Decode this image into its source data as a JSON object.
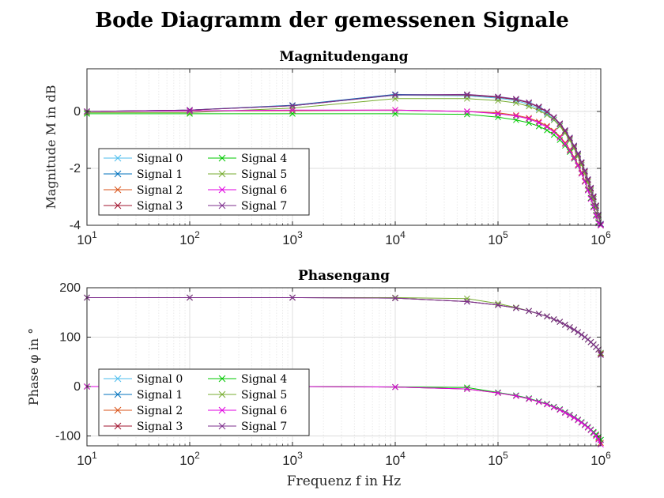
{
  "figure": {
    "title": "Bode Diagramm der gemessenen Signale"
  },
  "chart_data": [
    {
      "type": "line",
      "title": "Magnitudengang",
      "ylabel": "Magnitude M in dB",
      "xlabel": "",
      "xscale": "log",
      "xlim": [
        10,
        1000000
      ],
      "ylim": [
        -4,
        1.5
      ],
      "yticks": [
        -4,
        -2,
        0
      ],
      "ytick_labels": [
        "-4",
        "-2",
        "0"
      ],
      "xtick_labels": [
        "10",
        "10",
        "10",
        "10",
        "10",
        "10"
      ],
      "xtick_exponents": [
        "1",
        "2",
        "3",
        "4",
        "5",
        "6"
      ],
      "grid": true,
      "legend_position": "bottom-left",
      "x": [
        10,
        100,
        1000,
        10000,
        50000,
        100000,
        150000,
        200000,
        250000,
        300000,
        350000,
        400000,
        450000,
        500000,
        550000,
        600000,
        650000,
        700000,
        750000,
        800000,
        850000,
        900000,
        950000,
        1000000
      ],
      "series": [
        {
          "name": "Signal 0",
          "color": "#4DBEEE",
          "values": [
            0.0,
            0.05,
            0.2,
            0.57,
            0.55,
            0.47,
            0.38,
            0.25,
            0.1,
            -0.08,
            -0.28,
            -0.5,
            -0.74,
            -1.0,
            -1.28,
            -1.57,
            -1.87,
            -2.17,
            -2.47,
            -2.77,
            -3.07,
            -3.37,
            -3.67,
            -3.98
          ]
        },
        {
          "name": "Signal 1",
          "color": "#0072BD",
          "values": [
            0.0,
            0.05,
            0.22,
            0.6,
            0.58,
            0.5,
            0.42,
            0.3,
            0.15,
            -0.02,
            -0.22,
            -0.44,
            -0.68,
            -0.94,
            -1.22,
            -1.5,
            -1.8,
            -2.1,
            -2.4,
            -2.7,
            -3.0,
            -3.32,
            -3.64,
            -3.95
          ]
        },
        {
          "name": "Signal 2",
          "color": "#D95319",
          "values": [
            0.0,
            0.02,
            0.03,
            0.05,
            0.0,
            -0.05,
            -0.13,
            -0.23,
            -0.36,
            -0.51,
            -0.68,
            -0.88,
            -1.1,
            -1.34,
            -1.6,
            -1.87,
            -2.15,
            -2.44,
            -2.74,
            -3.04,
            -3.34,
            -3.64,
            -3.9,
            -4.0
          ]
        },
        {
          "name": "Signal 3",
          "color": "#A2142F",
          "values": [
            0.0,
            0.05,
            0.2,
            0.58,
            0.58,
            0.5,
            0.42,
            0.3,
            0.15,
            -0.02,
            -0.22,
            -0.45,
            -0.7,
            -0.96,
            -1.24,
            -1.53,
            -1.82,
            -2.12,
            -2.42,
            -2.72,
            -3.02,
            -3.33,
            -3.65,
            -3.97
          ]
        },
        {
          "name": "Signal 4",
          "color": "#00C800",
          "values": [
            -0.08,
            -0.08,
            -0.08,
            -0.08,
            -0.1,
            -0.2,
            -0.3,
            -0.4,
            -0.52,
            -0.66,
            -0.82,
            -1.0,
            -1.2,
            -1.42,
            -1.66,
            -1.91,
            -2.18,
            -2.46,
            -2.75,
            -3.04,
            -3.34,
            -3.64,
            -3.9,
            -4.0
          ]
        },
        {
          "name": "Signal 5",
          "color": "#77AC30",
          "values": [
            -0.04,
            -0.04,
            0.12,
            0.45,
            0.45,
            0.38,
            0.3,
            0.18,
            0.04,
            -0.12,
            -0.3,
            -0.52,
            -0.76,
            -1.02,
            -1.3,
            -1.58,
            -1.88,
            -2.18,
            -2.48,
            -2.78,
            -3.08,
            -3.4,
            -3.7,
            -4.0
          ]
        },
        {
          "name": "Signal 6",
          "color": "#E000E0",
          "values": [
            0.0,
            0.02,
            0.05,
            0.05,
            0.0,
            -0.08,
            -0.16,
            -0.26,
            -0.4,
            -0.55,
            -0.72,
            -0.92,
            -1.14,
            -1.38,
            -1.64,
            -1.9,
            -2.18,
            -2.47,
            -2.77,
            -3.07,
            -3.37,
            -3.67,
            -3.93,
            -4.0
          ]
        },
        {
          "name": "Signal 7",
          "color": "#7E2F8E",
          "values": [
            0.0,
            0.05,
            0.2,
            0.58,
            0.6,
            0.52,
            0.44,
            0.32,
            0.17,
            0.0,
            -0.2,
            -0.42,
            -0.66,
            -0.92,
            -1.2,
            -1.48,
            -1.78,
            -2.08,
            -2.38,
            -2.68,
            -2.98,
            -3.3,
            -3.62,
            -3.96
          ]
        }
      ]
    },
    {
      "type": "line",
      "title": "Phasengang",
      "ylabel": "Phase φ in °",
      "xlabel": "Frequenz f in Hz",
      "xscale": "log",
      "xlim": [
        10,
        1000000
      ],
      "ylim": [
        -120,
        200
      ],
      "yticks": [
        -100,
        0,
        100,
        200
      ],
      "ytick_labels": [
        "-100",
        "0",
        "100",
        "200"
      ],
      "xtick_labels": [
        "10",
        "10",
        "10",
        "10",
        "10",
        "10"
      ],
      "xtick_exponents": [
        "1",
        "2",
        "3",
        "4",
        "5",
        "6"
      ],
      "grid": true,
      "legend_position": "bottom-left",
      "x": [
        10,
        100,
        1000,
        10000,
        50000,
        100000,
        150000,
        200000,
        250000,
        300000,
        350000,
        400000,
        450000,
        500000,
        550000,
        600000,
        650000,
        700000,
        750000,
        800000,
        850000,
        900000,
        950000,
        1000000
      ],
      "series": [
        {
          "name": "Signal 0",
          "color": "#4DBEEE",
          "values": [
            0,
            0,
            0,
            -1,
            -5,
            -12,
            -18,
            -24,
            -30,
            -35,
            -41,
            -46,
            -52,
            -57,
            -62,
            -67,
            -72,
            -77,
            -82,
            -87,
            -92,
            -97,
            -102,
            -108
          ]
        },
        {
          "name": "Signal 1",
          "color": "#0072BD",
          "values": [
            180,
            180,
            180,
            179,
            172,
            165,
            159,
            153,
            147,
            142,
            136,
            131,
            125,
            120,
            115,
            110,
            105,
            100,
            95,
            90,
            85,
            80,
            75,
            68
          ]
        },
        {
          "name": "Signal 2",
          "color": "#D95319",
          "values": [
            0,
            0,
            0,
            -1,
            -5,
            -13,
            -19,
            -25,
            -31,
            -36,
            -42,
            -47,
            -53,
            -58,
            -63,
            -68,
            -73,
            -78,
            -83,
            -88,
            -93,
            -99,
            -105,
            -114
          ]
        },
        {
          "name": "Signal 3",
          "color": "#A2142F",
          "values": [
            180,
            180,
            180,
            179,
            172,
            165,
            159,
            153,
            147,
            142,
            136,
            131,
            125,
            120,
            115,
            110,
            105,
            100,
            95,
            90,
            85,
            80,
            75,
            66
          ]
        },
        {
          "name": "Signal 4",
          "color": "#00C800",
          "values": [
            0,
            0,
            0,
            -1,
            -2,
            -12,
            -18,
            -24,
            -30,
            -35,
            -41,
            -46,
            -52,
            -57,
            -62,
            -67,
            -72,
            -77,
            -82,
            -87,
            -92,
            -97,
            -102,
            -108
          ]
        },
        {
          "name": "Signal 5",
          "color": "#77AC30",
          "values": [
            180,
            180,
            180,
            180,
            178,
            168,
            160,
            153,
            147,
            142,
            136,
            131,
            125,
            120,
            115,
            110,
            105,
            100,
            95,
            90,
            85,
            80,
            75,
            68
          ]
        },
        {
          "name": "Signal 6",
          "color": "#E000E0",
          "values": [
            0,
            0,
            0,
            -1,
            -5,
            -13,
            -19,
            -25,
            -31,
            -36,
            -42,
            -47,
            -53,
            -58,
            -63,
            -68,
            -73,
            -78,
            -83,
            -88,
            -94,
            -100,
            -107,
            -117
          ]
        },
        {
          "name": "Signal 7",
          "color": "#7E2F8E",
          "values": [
            180,
            180,
            180,
            179,
            172,
            165,
            159,
            153,
            147,
            142,
            136,
            131,
            125,
            120,
            115,
            110,
            105,
            100,
            95,
            90,
            85,
            80,
            75,
            64
          ]
        }
      ]
    }
  ]
}
